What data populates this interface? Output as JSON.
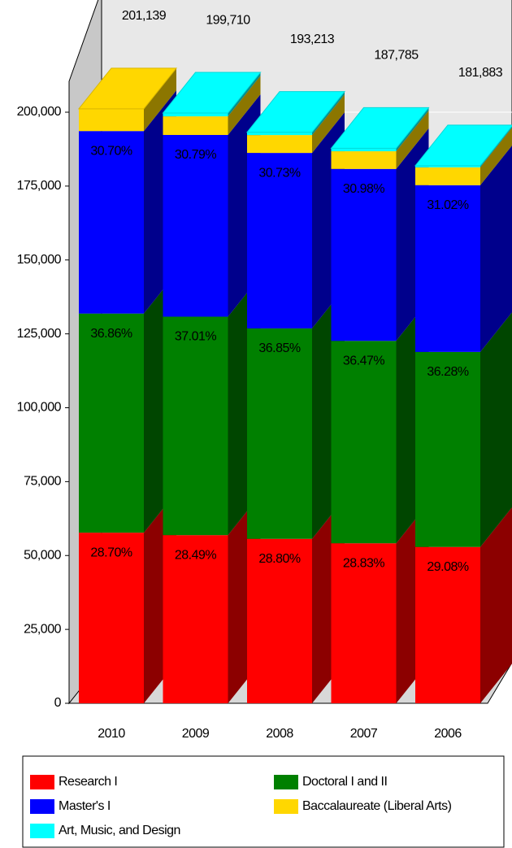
{
  "chart_data": {
    "type": "stacked-bar-3d",
    "categories": [
      "2010",
      "2009",
      "2008",
      "2007",
      "2006"
    ],
    "series": [
      {
        "name": "Research I",
        "color": "#ff0000",
        "values": [
          57727,
          56897,
          55645,
          54138,
          52892
        ]
      },
      {
        "name": "Doctoral I and II",
        "color": "#008000",
        "values": [
          74140,
          73913,
          71199,
          68485,
          65987
        ]
      },
      {
        "name": "Master's I",
        "color": "#0000ff",
        "values": [
          61750,
          61491,
          59374,
          58176,
          56420
        ]
      },
      {
        "name": "Baccalaureate (Liberal Arts)",
        "color": "#ffd700",
        "values": [
          7522,
          6300,
          6050,
          5986,
          6050
        ]
      },
      {
        "name": "Art, Music, and Design",
        "color": "#00ffff",
        "values": [
          0,
          1109,
          945,
          1000,
          534
        ]
      }
    ],
    "percent_labels": [
      [
        "28.70%",
        "28.49%",
        "28.80%",
        "28.83%",
        "29.08%"
      ],
      [
        "36.86%",
        "37.01%",
        "36.85%",
        "36.47%",
        "36.28%"
      ],
      [
        "30.70%",
        "30.79%",
        "30.73%",
        "30.98%",
        "31.02%"
      ]
    ],
    "total_labels": [
      "201,139",
      "199,710",
      "193,213",
      "187,785",
      "181,883"
    ],
    "ylim": [
      0,
      200000
    ],
    "yticks": [
      0,
      {
        "value": 25000,
        "label": "25,000"
      },
      {
        "value": 50000,
        "label": "50,000"
      },
      {
        "value": 75000,
        "label": "75,000"
      },
      {
        "value": 100000,
        "label": "100,000"
      },
      {
        "value": 125000,
        "label": "125,000"
      },
      {
        "value": 150000,
        "label": "150,000"
      },
      {
        "value": 175000,
        "label": "175,000"
      },
      {
        "value": 200000,
        "label": "200,000"
      }
    ],
    "grid": true
  }
}
